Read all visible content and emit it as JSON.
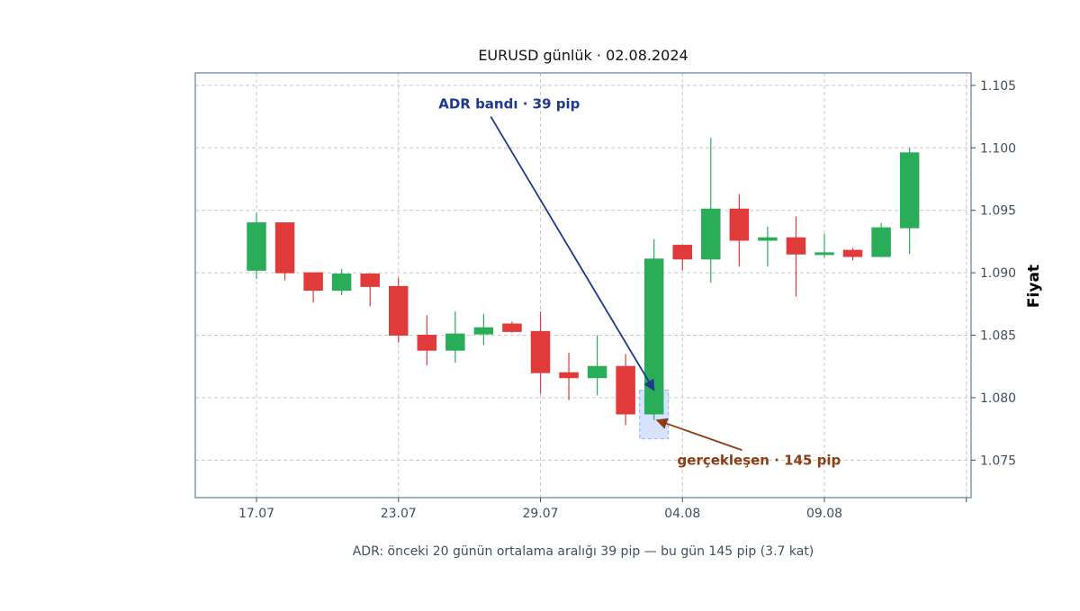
{
  "colors": {
    "up": "#2aad58",
    "down": "#e03a3a",
    "frame": "#8a9bb5",
    "grid": "#c8c8c8",
    "adr_arrow": "#1f3a8a",
    "actual_arrow": "#8b3e12",
    "adr_band_fill": "#c9d8ff",
    "adr_band_stroke": "#8fb0ff"
  },
  "chart_data": {
    "type": "candlestick",
    "title": "EURUSD günlük · 02.08.2024",
    "ylabel": "Fiyat",
    "caption": "ADR: önceki 20 günün ortalama aralığı 39 pip — bu gün 145 pip (3.7 kat)",
    "ylim": [
      1.072,
      1.106
    ],
    "yticks": [
      1.075,
      1.08,
      1.085,
      1.09,
      1.095,
      1.1,
      1.105
    ],
    "ytick_labels": [
      "1.075",
      "1.080",
      "1.085",
      "1.090",
      "1.095",
      "1.100",
      "1.105"
    ],
    "xticks": [
      {
        "index": 0,
        "label": "17.07"
      },
      {
        "index": 5,
        "label": "23.07"
      },
      {
        "index": 10,
        "label": "29.07"
      },
      {
        "index": 15,
        "label": "04.08"
      },
      {
        "index": 20,
        "label": "09.08"
      },
      {
        "index": 25,
        "label": ""
      }
    ],
    "x_range": [
      -2.2,
      25.3
    ],
    "candles": [
      {
        "open": 1.0902,
        "high": 1.0948,
        "low": 1.0895,
        "close": 1.094
      },
      {
        "open": 1.094,
        "high": 1.094,
        "low": 1.0894,
        "close": 1.09
      },
      {
        "open": 1.09,
        "high": 1.09,
        "low": 1.0876,
        "close": 1.0886
      },
      {
        "open": 1.0886,
        "high": 1.0903,
        "low": 1.0882,
        "close": 1.0899
      },
      {
        "open": 1.0899,
        "high": 1.09,
        "low": 1.0873,
        "close": 1.0889
      },
      {
        "open": 1.0889,
        "high": 1.0896,
        "low": 1.0844,
        "close": 1.085
      },
      {
        "open": 1.085,
        "high": 1.0866,
        "low": 1.0826,
        "close": 1.0838
      },
      {
        "open": 1.0838,
        "high": 1.0869,
        "low": 1.0828,
        "close": 1.0851
      },
      {
        "open": 1.0851,
        "high": 1.0867,
        "low": 1.0842,
        "close": 1.0856
      },
      {
        "open": 1.0859,
        "high": 1.0861,
        "low": 1.0852,
        "close": 1.0853
      },
      {
        "open": 1.0853,
        "high": 1.0869,
        "low": 1.0803,
        "close": 1.082
      },
      {
        "open": 1.082,
        "high": 1.0836,
        "low": 1.0798,
        "close": 1.0816
      },
      {
        "open": 1.0816,
        "high": 1.085,
        "low": 1.0802,
        "close": 1.0825
      },
      {
        "open": 1.0825,
        "high": 1.0835,
        "low": 1.0778,
        "close": 1.0787
      },
      {
        "open": 1.0787,
        "high": 1.0927,
        "low": 1.0782,
        "close": 1.0911
      },
      {
        "open": 1.0922,
        "high": 1.0922,
        "low": 1.0902,
        "close": 1.0911
      },
      {
        "open": 1.0911,
        "high": 1.1008,
        "low": 1.0892,
        "close": 1.0951
      },
      {
        "open": 1.0951,
        "high": 1.0963,
        "low": 1.0905,
        "close": 1.0926
      },
      {
        "open": 1.0926,
        "high": 1.0937,
        "low": 1.0905,
        "close": 1.0928
      },
      {
        "open": 1.0928,
        "high": 1.0945,
        "low": 1.0881,
        "close": 1.0915
      },
      {
        "open": 1.0915,
        "high": 1.0931,
        "low": 1.0912,
        "close": 1.0916
      },
      {
        "open": 1.0918,
        "high": 1.092,
        "low": 1.091,
        "close": 1.0913
      },
      {
        "open": 1.0913,
        "high": 1.094,
        "low": 1.0913,
        "close": 1.0936
      },
      {
        "open": 1.0936,
        "high": 1.1,
        "low": 1.0915,
        "close": 1.0996
      }
    ],
    "adr_band": {
      "index": 14,
      "low": 1.0767,
      "high": 1.0806
    },
    "annotations": [
      {
        "id": "adr",
        "text": "ADR bandı · 39 pip",
        "text_index": 8.9,
        "text_price": 1.1035,
        "arrow_from_index": 8.25,
        "arrow_from_price": 1.1025,
        "arrow_to_index": 14.0,
        "arrow_to_price": 1.0806,
        "color": "#1f3a8a"
      },
      {
        "id": "actual",
        "text": "gerçekleşen · 145 pip",
        "text_index": 17.7,
        "text_price": 1.075,
        "arrow_from_index": 17.1,
        "arrow_from_price": 1.0758,
        "arrow_to_index": 14.1,
        "arrow_to_price": 1.0782,
        "color": "#8b3e12"
      }
    ]
  }
}
